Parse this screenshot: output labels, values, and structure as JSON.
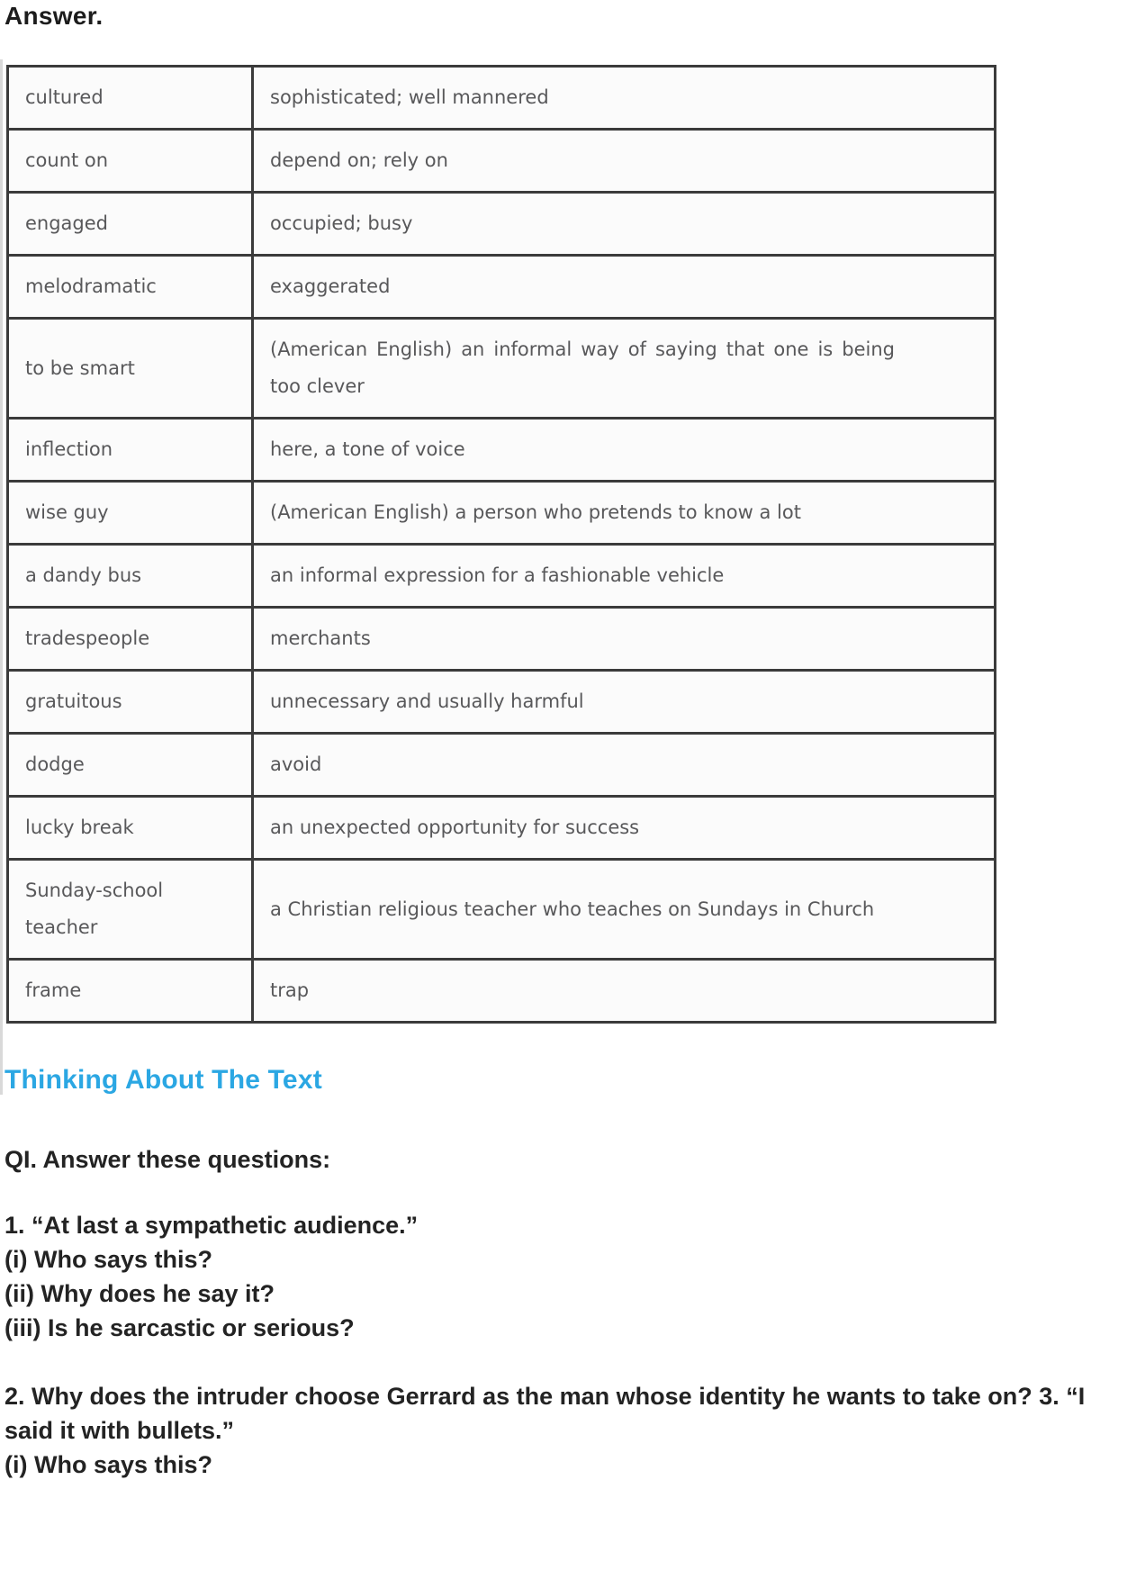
{
  "colors": {
    "accent_blue": "#2BA7E3",
    "table_border": "#3B3B3B",
    "table_text": "#58585A",
    "body_text": "#232323"
  },
  "page": {
    "answer_heading": "Answer.",
    "section_heading": "Thinking About The Text"
  },
  "glossary_table": {
    "rows": [
      {
        "term": "cultured",
        "definition": "sophisticated; well mannered"
      },
      {
        "term": "count on",
        "definition": "depend on; rely on"
      },
      {
        "term": "engaged",
        "definition": "occupied; busy"
      },
      {
        "term": "melodramatic",
        "definition": "exaggerated"
      },
      {
        "term": "to be smart",
        "definition": "(American English) an informal way of saying that one is being too clever"
      },
      {
        "term": "inflection",
        "definition": "here, a tone of voice"
      },
      {
        "term": "wise guy",
        "definition": "(American English) a person who pretends to know a lot"
      },
      {
        "term": "a dandy bus",
        "definition": "an informal expression for a fashionable vehicle"
      },
      {
        "term": "tradespeople",
        "definition": "merchants"
      },
      {
        "term": "gratuitous",
        "definition": "unnecessary and usually harmful"
      },
      {
        "term": "dodge",
        "definition": "avoid"
      },
      {
        "term": "lucky break",
        "definition": "an unexpected opportunity for success"
      },
      {
        "term": "Sunday-school teacher",
        "definition": "a Christian religious teacher who teaches on Sundays in Church"
      },
      {
        "term": "frame",
        "definition": "trap"
      }
    ]
  },
  "questions": {
    "intro": "QI. Answer these questions:",
    "q1": {
      "line": "1. “At last a sympathetic audience.”",
      "subs": [
        "(i) Who says this?",
        "(ii) Why does he say it?",
        "(iii) Is he sarcastic or serious?"
      ]
    },
    "q2": {
      "line": "2. Why does the intruder choose Gerrard as the man whose identity he wants to take on? 3. “I said it with bullets.”",
      "subs": [
        "(i) Who says this?"
      ]
    }
  }
}
